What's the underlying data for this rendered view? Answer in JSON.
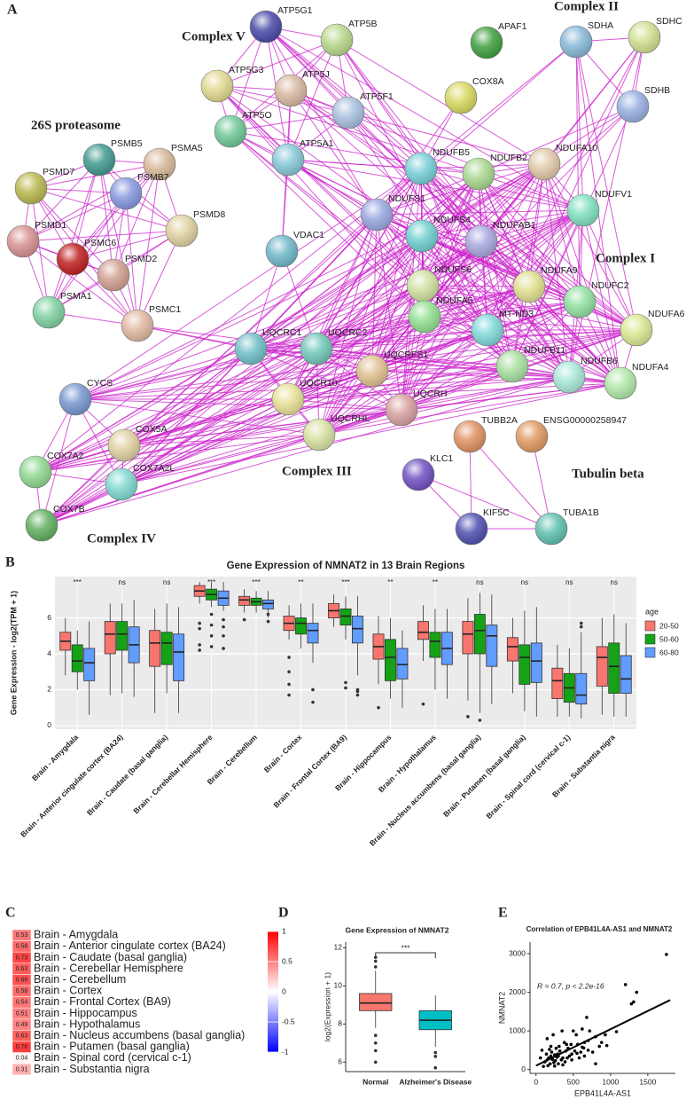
{
  "network": {
    "panel_label": "A",
    "groups": [
      "Complex V",
      "26S proteasome",
      "Complex II",
      "Complex I",
      "Complex III",
      "Complex IV",
      "Tubulin beta"
    ],
    "nodes": [
      "ATP5G1",
      "ATP5B",
      "ATP5G3",
      "ATP5J",
      "ATP5F1",
      "ATP5O",
      "ATP5A1",
      "APAF1",
      "COX8A",
      "SDHA",
      "SDHC",
      "SDHB",
      "NDUFB5",
      "NDUFB2",
      "NDUFA10",
      "NDUFS1",
      "NDUFS4",
      "NDUFAB1",
      "NDUFV1",
      "NDUFS6",
      "NDUFA9",
      "NDUFC2",
      "NDUFA5",
      "MT-ND3",
      "NDUFA6",
      "NDUFB11",
      "NDUFB6",
      "NDUFA4",
      "VDAC1",
      "PSMB5",
      "PSMA5",
      "PSMD7",
      "PSMB7",
      "PSMD8",
      "PSMD1",
      "PSMC6",
      "PSMD2",
      "PSMA1",
      "PSMC1",
      "UQCRC1",
      "UQCRC2",
      "UQCRFS1",
      "UQCR10",
      "UQCRH",
      "UQCRHL",
      "CYCS",
      "COX5A",
      "COX7A2",
      "COX7A2L",
      "COX7B",
      "TUBB2A",
      "ENSG00000258947",
      "KLC1",
      "KIF5C",
      "TUBA1B"
    ]
  },
  "chart_data": [
    {
      "type": "boxplot",
      "panel_label": "B",
      "title": "Gene Expression of  NMNAT2 in 13 Brain Regions",
      "y_label": "Gene Expression - log2(TPM + 1)",
      "categories": [
        "Brain - Amygdala",
        "Brain - Anterior cingulate cortex (BA24)",
        "Brain - Caudate (basal ganglia)",
        "Brain - Cerebellar Hemisphere",
        "Brain - Cerebellum",
        "Brain - Cortex",
        "Brain - Frontal Cortex (BA9)",
        "Brain - Hippocampus",
        "Brain - Hypothalamus",
        "Brain - Nucleus accumbens (basal ganglia)",
        "Brain - Putamen (basal ganglia)",
        "Brain - Spinal cord (cervical c-1)",
        "Brain - Substantia nigra"
      ],
      "annotations": [
        "***",
        "ns",
        "ns",
        "***",
        "***",
        "**",
        "***",
        "**",
        "**",
        "ns",
        "ns",
        "ns",
        "ns"
      ],
      "legend_title": "age",
      "legend": "right",
      "grid": true,
      "ylim": [
        -0.2,
        8.3
      ],
      "yticks": [
        0,
        2,
        4,
        6
      ],
      "series": [
        {
          "name": "20-50",
          "color": "#f8766d",
          "low": [
            2.8,
            1.7,
            0.7,
            6.8,
            6.3,
            4.8,
            5.5,
            2.3,
            3.6,
            1.4,
            1.8,
            0.5,
            0.6
          ],
          "q1": [
            4.2,
            4.0,
            3.3,
            7.2,
            6.7,
            5.3,
            6.0,
            3.7,
            4.8,
            4.0,
            3.6,
            1.5,
            2.2
          ],
          "median": [
            4.7,
            5.1,
            4.6,
            7.5,
            7.0,
            5.7,
            6.4,
            4.4,
            5.2,
            5.1,
            4.4,
            2.5,
            3.8
          ],
          "q3": [
            5.2,
            5.8,
            5.3,
            7.8,
            7.2,
            6.1,
            6.8,
            5.1,
            5.8,
            5.8,
            4.9,
            3.2,
            4.4
          ],
          "high": [
            6.0,
            6.8,
            6.5,
            8.0,
            7.6,
            6.7,
            7.3,
            6.1,
            6.7,
            7.1,
            6.0,
            4.5,
            6.0
          ],
          "outliers": [
            [],
            [],
            [],
            [
              4.2,
              4.5,
              5.4,
              5.7
            ],
            [
              5.9
            ],
            [
              1.7,
              2.3,
              3.0,
              3.8
            ],
            [],
            [
              1.0
            ],
            [
              1.2
            ],
            [
              0.5
            ],
            [],
            [],
            []
          ]
        },
        {
          "name": "50-60",
          "color": "#14a314",
          "low": [
            2.0,
            1.8,
            1.8,
            6.6,
            6.3,
            4.3,
            4.8,
            1.5,
            2.0,
            0.7,
            0.8,
            0.5,
            0.5
          ],
          "q1": [
            3.0,
            4.2,
            3.4,
            7.0,
            6.7,
            5.1,
            5.6,
            2.5,
            3.8,
            4.0,
            2.3,
            1.3,
            1.8
          ],
          "median": [
            3.6,
            5.1,
            4.6,
            7.3,
            6.9,
            5.7,
            6.1,
            3.8,
            4.7,
            5.3,
            3.8,
            2.1,
            3.3
          ],
          "q3": [
            4.5,
            5.8,
            5.2,
            7.6,
            7.1,
            6.0,
            6.5,
            4.8,
            5.2,
            6.2,
            4.5,
            2.9,
            4.6
          ],
          "high": [
            5.3,
            6.8,
            6.8,
            8.0,
            7.5,
            6.8,
            7.2,
            6.0,
            6.5,
            7.4,
            6.4,
            4.3,
            6.2
          ],
          "outliers": [
            [],
            [],
            [],
            [
              4.4,
              5.0,
              5.6,
              6.2
            ],
            [],
            [],
            [
              2.1,
              2.4
            ],
            [],
            [],
            [
              0.3
            ],
            [],
            [],
            []
          ]
        },
        {
          "name": "60-80",
          "color": "#619cff",
          "low": [
            0.6,
            1.6,
            0.7,
            6.4,
            6.0,
            3.5,
            2.8,
            1.0,
            1.5,
            1.2,
            0.5,
            0.4,
            0.5
          ],
          "q1": [
            2.5,
            3.5,
            2.5,
            6.7,
            6.5,
            4.6,
            4.6,
            2.6,
            3.4,
            3.3,
            2.4,
            1.2,
            1.8
          ],
          "median": [
            3.5,
            4.5,
            4.1,
            7.1,
            6.8,
            5.3,
            5.4,
            3.4,
            4.3,
            5.0,
            3.6,
            1.7,
            2.6
          ],
          "q3": [
            4.3,
            5.5,
            5.1,
            7.5,
            7.0,
            5.7,
            6.1,
            4.3,
            5.2,
            5.6,
            4.6,
            2.9,
            3.9
          ],
          "high": [
            5.8,
            7.0,
            6.6,
            8.0,
            7.5,
            6.8,
            7.2,
            5.3,
            6.5,
            7.3,
            6.6,
            5.2,
            5.7
          ],
          "outliers": [
            [],
            [],
            [],
            [
              4.3,
              5.0,
              5.5,
              5.9
            ],
            [
              5.8,
              6.2
            ],
            [
              1.3,
              2.0
            ],
            [
              1.7,
              1.9,
              2.0
            ],
            [],
            [],
            [],
            [],
            [
              5.5,
              5.7
            ],
            []
          ]
        }
      ]
    },
    {
      "type": "heatmap",
      "panel_label": "C",
      "categories": [
        "Brain - Amygdala",
        "Brain - Anterior cingulate cortex (BA24)",
        "Brain - Caudate (basal ganglia)",
        "Brain - Cerebellar Hemisphere",
        "Brain - Cerebellum",
        "Brain - Cortex",
        "Brain - Frontal Cortex (BA9)",
        "Brain - Hippocampus",
        "Brain - Hypothalamus",
        "Brain - Nucleus accumbens (basal ganglia)",
        "Brain - Putamen (basal ganglia)",
        "Brain - Spinal cord (cervical c-1)",
        "Brain - Substantia nigra"
      ],
      "values": [
        0.53,
        0.58,
        0.73,
        0.63,
        0.68,
        0.58,
        0.54,
        0.51,
        0.49,
        0.63,
        0.76,
        0.04,
        0.31
      ],
      "colorscale": [
        "#0000ff",
        "#ffffff",
        "#ff0000"
      ],
      "clim": [
        -1,
        1
      ],
      "cticks": [
        1,
        0.5,
        0,
        -0.5,
        -1
      ]
    },
    {
      "type": "boxplot",
      "panel_label": "D",
      "title": "Gene Expression of  NMNAT2",
      "y_label": "log2(Expression + 1)",
      "categories": [
        "Normal",
        "Alzheimer's Disease"
      ],
      "annotation": "***",
      "ylim": [
        5.5,
        12.3
      ],
      "yticks": [
        6,
        8,
        10,
        12
      ],
      "series": [
        {
          "colors": [
            "#f8766d",
            "#00bfc4"
          ],
          "low": [
            7.8,
            6.8
          ],
          "q1": [
            8.7,
            7.7
          ],
          "median": [
            9.1,
            8.2
          ],
          "q3": [
            9.6,
            8.7
          ],
          "high": [
            10.8,
            9.5
          ],
          "outliers": [
            [
              6.0,
              6.6,
              7.0,
              7.4,
              11.0,
              11.3,
              11.5
            ],
            [
              5.7,
              6.3,
              6.5
            ]
          ]
        }
      ]
    },
    {
      "type": "scatter",
      "panel_label": "E",
      "title": "Correlation of  EPB41L4A-AS1  and NMNAT2",
      "x_label": "EPB41L4A-AS1",
      "y_label": "NMNAT2",
      "annotation": "R = 0.7, p < 2.2e-16",
      "xlim": [
        -80,
        1870
      ],
      "xticks": [
        0,
        500,
        1000,
        1500
      ],
      "ylim": [
        -100,
        3300
      ],
      "yticks": [
        0,
        1000,
        2000,
        3000
      ],
      "color": "#000000",
      "x": [
        1750,
        1350,
        1310,
        1280,
        1200,
        1080,
        950,
        930,
        880,
        850,
        800,
        760,
        720,
        700,
        680,
        650,
        640,
        620,
        600,
        580,
        560,
        540,
        520,
        500,
        480,
        470,
        450,
        430,
        420,
        400,
        390,
        380,
        360,
        350,
        340,
        320,
        310,
        300,
        290,
        280,
        270,
        260,
        250,
        240,
        230,
        220,
        210,
        200,
        190,
        180,
        170,
        160,
        150,
        140,
        120,
        100,
        80,
        60,
        620,
        550,
        480,
        410,
        360,
        300,
        250,
        200,
        700,
        650,
        800,
        150
      ],
      "y": [
        2980,
        2000,
        1750,
        1700,
        2200,
        980,
        620,
        900,
        700,
        600,
        850,
        450,
        1000,
        500,
        1350,
        700,
        560,
        1050,
        450,
        300,
        650,
        900,
        480,
        1000,
        400,
        650,
        350,
        550,
        300,
        480,
        200,
        700,
        300,
        1000,
        250,
        480,
        600,
        150,
        400,
        320,
        550,
        230,
        380,
        180,
        900,
        260,
        450,
        350,
        150,
        520,
        300,
        100,
        250,
        400,
        200,
        80,
        500,
        300,
        580,
        420,
        250,
        650,
        120,
        350,
        90,
        600,
        750,
        350,
        150,
        800
      ],
      "trend": {
        "x": [
          0,
          1800
        ],
        "y": [
          100,
          1800
        ]
      }
    }
  ]
}
